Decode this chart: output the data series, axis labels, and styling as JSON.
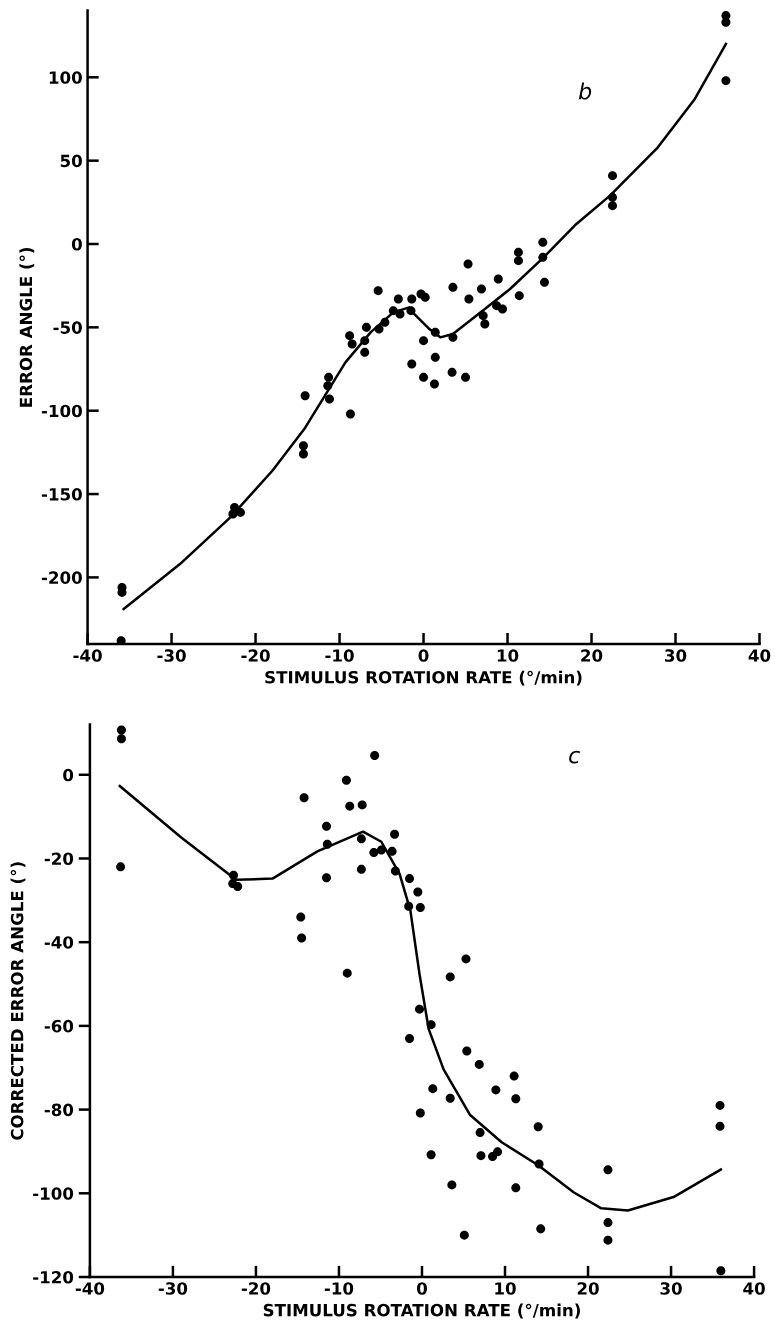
{
  "chart_data": [
    {
      "type": "scatter",
      "annotations": [
        "b"
      ],
      "xlabel": "STIMULUS ROTATION RATE (°/min)",
      "ylabel": "ERROR ANGLE (°)",
      "xlim": [
        -40,
        40
      ],
      "xticks": [
        -40,
        -30,
        -20,
        -10,
        0,
        10,
        20,
        30,
        40
      ],
      "ylim": [
        -240,
        140
      ],
      "yticks": [
        -200,
        -150,
        -100,
        -50,
        0,
        50,
        100
      ],
      "grid": false,
      "legend": false,
      "marker": "circle",
      "series": [
        {
          "color": "#000000",
          "x": [
            -35.9,
            -35.9,
            -36,
            -22.5,
            -22.7,
            -21.8,
            -14.1,
            -14.3,
            -14.3,
            -11.3,
            -11.4,
            -11.2,
            -8.7,
            -8.8,
            -8.5,
            -7.0,
            -7.0,
            -6.8,
            -5.4,
            -5.3,
            -4.6,
            -3.6,
            -3.0,
            -2.8,
            -1.5,
            -1.4,
            -1.4,
            -0.3,
            0.2,
            0,
            0,
            1.4,
            1.3,
            1.4,
            3.5,
            3.5,
            3.4,
            5.0,
            5.3,
            5.4,
            6.9,
            7.1,
            7.3,
            8.9,
            8.7,
            9.4,
            11.3,
            11.3,
            11.4,
            14.2,
            14.2,
            14.4,
            22.5,
            22.5,
            22.5,
            36,
            36,
            36
          ],
          "values": [
            -206,
            -209,
            -238,
            -158,
            -162,
            -161,
            -91,
            -121,
            -126,
            -80,
            -85,
            -93,
            -102,
            -55,
            -60,
            -58,
            -65,
            -50,
            -28,
            -51,
            -47,
            -40,
            -33,
            -42,
            -40,
            -33,
            -72,
            -30,
            -32,
            -58,
            -80,
            -68,
            -84,
            -53,
            -26,
            -56,
            -77,
            -80,
            -12,
            -33,
            -27,
            -43,
            -48,
            -21,
            -37,
            -39,
            -5,
            -10,
            -31,
            1,
            -8,
            -23,
            41,
            28,
            23,
            137,
            133,
            98
          ]
        },
        {
          "type": "line",
          "color": "#000000",
          "marker": "none",
          "line_style": "solid",
          "x": [
            -35.7,
            -29,
            -23,
            -18,
            -14.2,
            -9.3,
            -6.3,
            -3.6,
            -1.7,
            -1.3,
            0.7,
            2,
            3.5,
            7.3,
            10.3,
            14.3,
            18.2,
            22.2,
            27.9,
            32.3,
            36
          ],
          "values": [
            -219,
            -192,
            -164,
            -136,
            -111,
            -71,
            -53,
            -41,
            -38,
            -41,
            -51,
            -56,
            -54,
            -39,
            -27,
            -8,
            12,
            29,
            58,
            87,
            120
          ]
        }
      ]
    },
    {
      "type": "scatter",
      "annotations": [
        "c"
      ],
      "xlabel": "STIMULUS ROTATION RATE (°/min)",
      "ylabel": "CORRECTED ERROR ANGLE (°)",
      "xlim": [
        -40,
        40
      ],
      "xticks": [
        -40,
        -30,
        -20,
        -10,
        0,
        10,
        20,
        30,
        40
      ],
      "ylim": [
        -120,
        12
      ],
      "yticks": [
        -120,
        -100,
        -80,
        -60,
        -40,
        -20,
        0
      ],
      "grid": false,
      "legend": false,
      "marker": "circle",
      "series": [
        {
          "color": "#000000",
          "x": [
            -36.2,
            -36.2,
            -36.3,
            -22.7,
            -22.8,
            -22.2,
            -14.2,
            -14.6,
            -14.5,
            -11.5,
            -11.4,
            -11.5,
            -9.1,
            -8.7,
            -9.0,
            -7.2,
            -7.3,
            -7.3,
            -5.7,
            -5.8,
            -4.9,
            -3.6,
            -3.3,
            -3.2,
            -1.5,
            -1.6,
            -0.5,
            -0.2,
            -0.3,
            1.1,
            -1.5,
            1.3,
            -0.2,
            1.1,
            5.3,
            3.4,
            5.4,
            6.9,
            3.4,
            7.0,
            7.1,
            8.5,
            9.1,
            8.9,
            11.1,
            11.3,
            11.3,
            3.6,
            5.1,
            14.0,
            14.1,
            14.3,
            22.4,
            22.4,
            22.4,
            35.9,
            35.9,
            36
          ],
          "values": [
            10.7,
            8.6,
            -22,
            -24,
            -26,
            -26.7,
            -5.5,
            -34,
            -39,
            -12.3,
            -16.6,
            -24.6,
            -1.3,
            -7.5,
            -47.4,
            -7.2,
            -15.3,
            -22.6,
            4.6,
            -18.6,
            -18,
            -18.3,
            -14.2,
            -23,
            -24.8,
            -31.4,
            -28,
            -31.7,
            -56,
            -59.7,
            -63,
            -75,
            -80.8,
            -90.8,
            -44,
            -48.3,
            -66,
            -69.2,
            -77.3,
            -85.5,
            -91,
            -91.2,
            -90.1,
            -75.3,
            -72,
            -77.4,
            -98.7,
            -98,
            -110,
            -84.1,
            -93,
            -108.5,
            -94.4,
            -107,
            -111.2,
            -79,
            -84,
            -118.5
          ]
        },
        {
          "type": "line",
          "color": "#000000",
          "marker": "none",
          "line_style": "solid",
          "x": [
            -36.4,
            -29,
            -22.4,
            -18,
            -12.6,
            -7.1,
            -4.9,
            -2.7,
            -1.4,
            -0.3,
            0.8,
            2.6,
            5.8,
            9.6,
            14,
            18.3,
            21.6,
            24.8,
            30.3,
            36
          ],
          "values": [
            -2.7,
            -15,
            -25.1,
            -24.8,
            -18.3,
            -13.6,
            -16,
            -23.7,
            -32.4,
            -47.6,
            -60.7,
            -70.4,
            -81.3,
            -87.8,
            -93.3,
            -99.8,
            -103.6,
            -104.1,
            -100.9,
            -94.3
          ]
        }
      ]
    }
  ]
}
